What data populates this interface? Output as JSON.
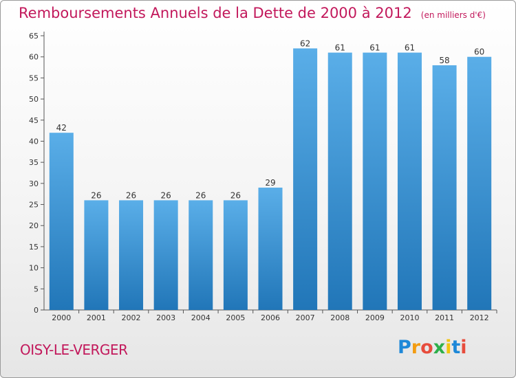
{
  "chart_data": {
    "type": "bar",
    "title": "Remboursements Annuels de la Dette de 2000 à 2012",
    "unit": "(en milliers d'€)",
    "categories": [
      "2000",
      "2001",
      "2002",
      "2003",
      "2004",
      "2005",
      "2006",
      "2007",
      "2008",
      "2009",
      "2010",
      "2011",
      "2012"
    ],
    "values": [
      42,
      26,
      26,
      26,
      26,
      26,
      29,
      62,
      61,
      61,
      61,
      58,
      60
    ],
    "ylim": [
      0,
      65
    ],
    "yticks": [
      0,
      5,
      10,
      15,
      20,
      25,
      30,
      35,
      40,
      45,
      50,
      55,
      60,
      65
    ],
    "grid": false,
    "bar_color_top": "#5aaee8",
    "bar_color_bottom": "#2176b8"
  },
  "commune": "OISY-LE-VERGER",
  "logo": {
    "letters": [
      "P",
      "r",
      "o",
      "x",
      "i",
      "t",
      "i"
    ],
    "colors": [
      "#1e88d8",
      "#f39c12",
      "#e74c3c",
      "#2eaf4a",
      "#f1c40f",
      "#1e88d8",
      "#e74c3c"
    ]
  }
}
